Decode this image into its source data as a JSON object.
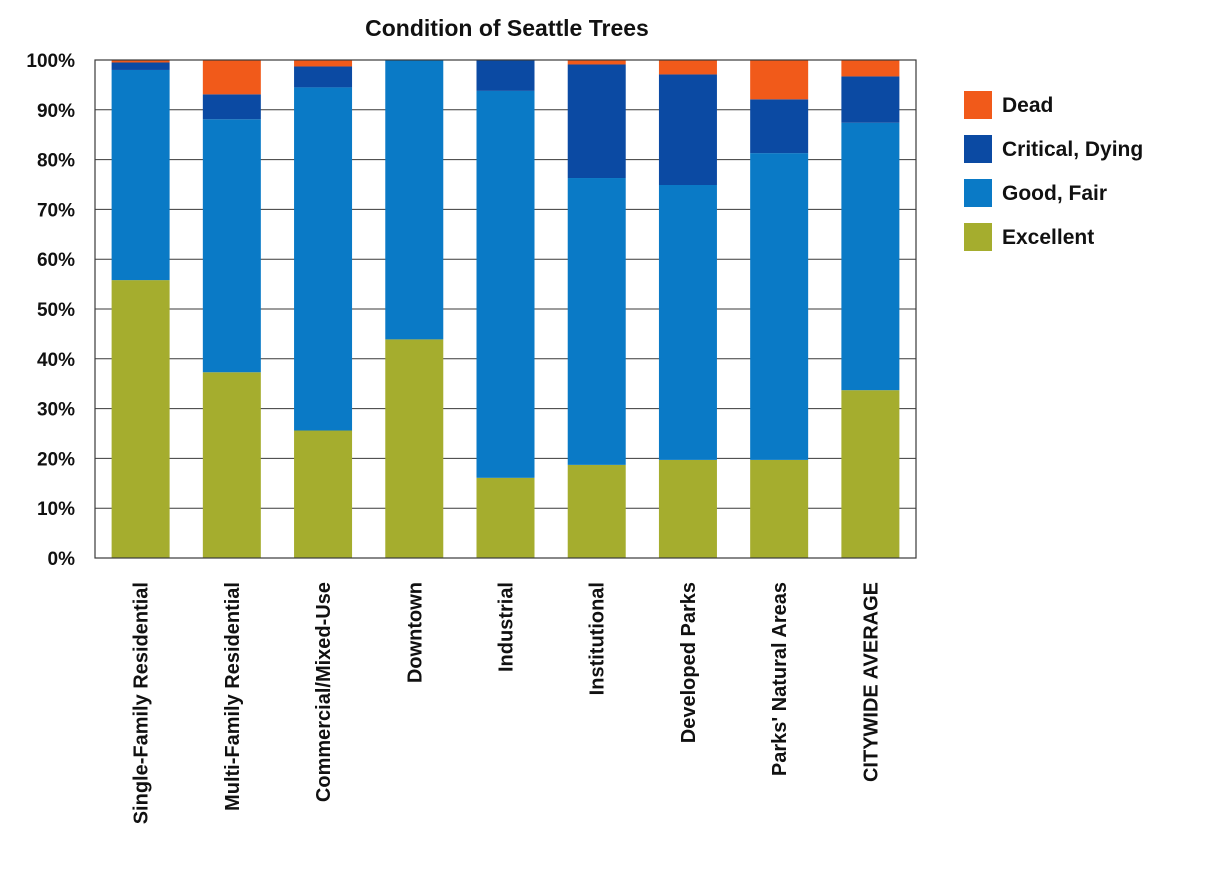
{
  "chart_data": {
    "type": "bar",
    "stacked": true,
    "title": "Condition of Seattle Trees",
    "xlabel": "",
    "ylabel": "",
    "ylim": [
      0,
      100
    ],
    "yticks": [
      "0%",
      "10%",
      "20%",
      "30%",
      "40%",
      "50%",
      "60%",
      "70%",
      "80%",
      "90%",
      "100%"
    ],
    "grid": true,
    "legend_position": "right",
    "categories": [
      "Single-Family Residential",
      "Multi-Family Residential",
      "Commercial/Mixed-Use",
      "Downtown",
      "Industrial",
      "Institutional",
      "Developed Parks",
      "Parks' Natural Areas",
      "CITYWIDE AVERAGE"
    ],
    "series": [
      {
        "name": "Excellent",
        "color": "#a5ad2e",
        "values": [
          55.8,
          37.3,
          25.6,
          43.9,
          16.1,
          18.7,
          19.7,
          19.7,
          33.7
        ]
      },
      {
        "name": "Good, Fair",
        "color": "#0a7ac6",
        "values": [
          42.2,
          50.8,
          68.9,
          56.1,
          77.7,
          57.6,
          55.2,
          61.6,
          53.7
        ]
      },
      {
        "name": "Critical, Dying",
        "color": "#0b4aa3",
        "values": [
          1.5,
          5.0,
          4.2,
          0.0,
          6.2,
          22.8,
          22.2,
          10.8,
          9.3
        ]
      },
      {
        "name": "Dead",
        "color": "#f15a1a",
        "values": [
          0.5,
          6.9,
          1.3,
          0.0,
          0.0,
          0.9,
          2.9,
          7.9,
          3.3
        ]
      }
    ],
    "legend_order": [
      "Dead",
      "Critical, Dying",
      "Good, Fair",
      "Excellent"
    ]
  }
}
